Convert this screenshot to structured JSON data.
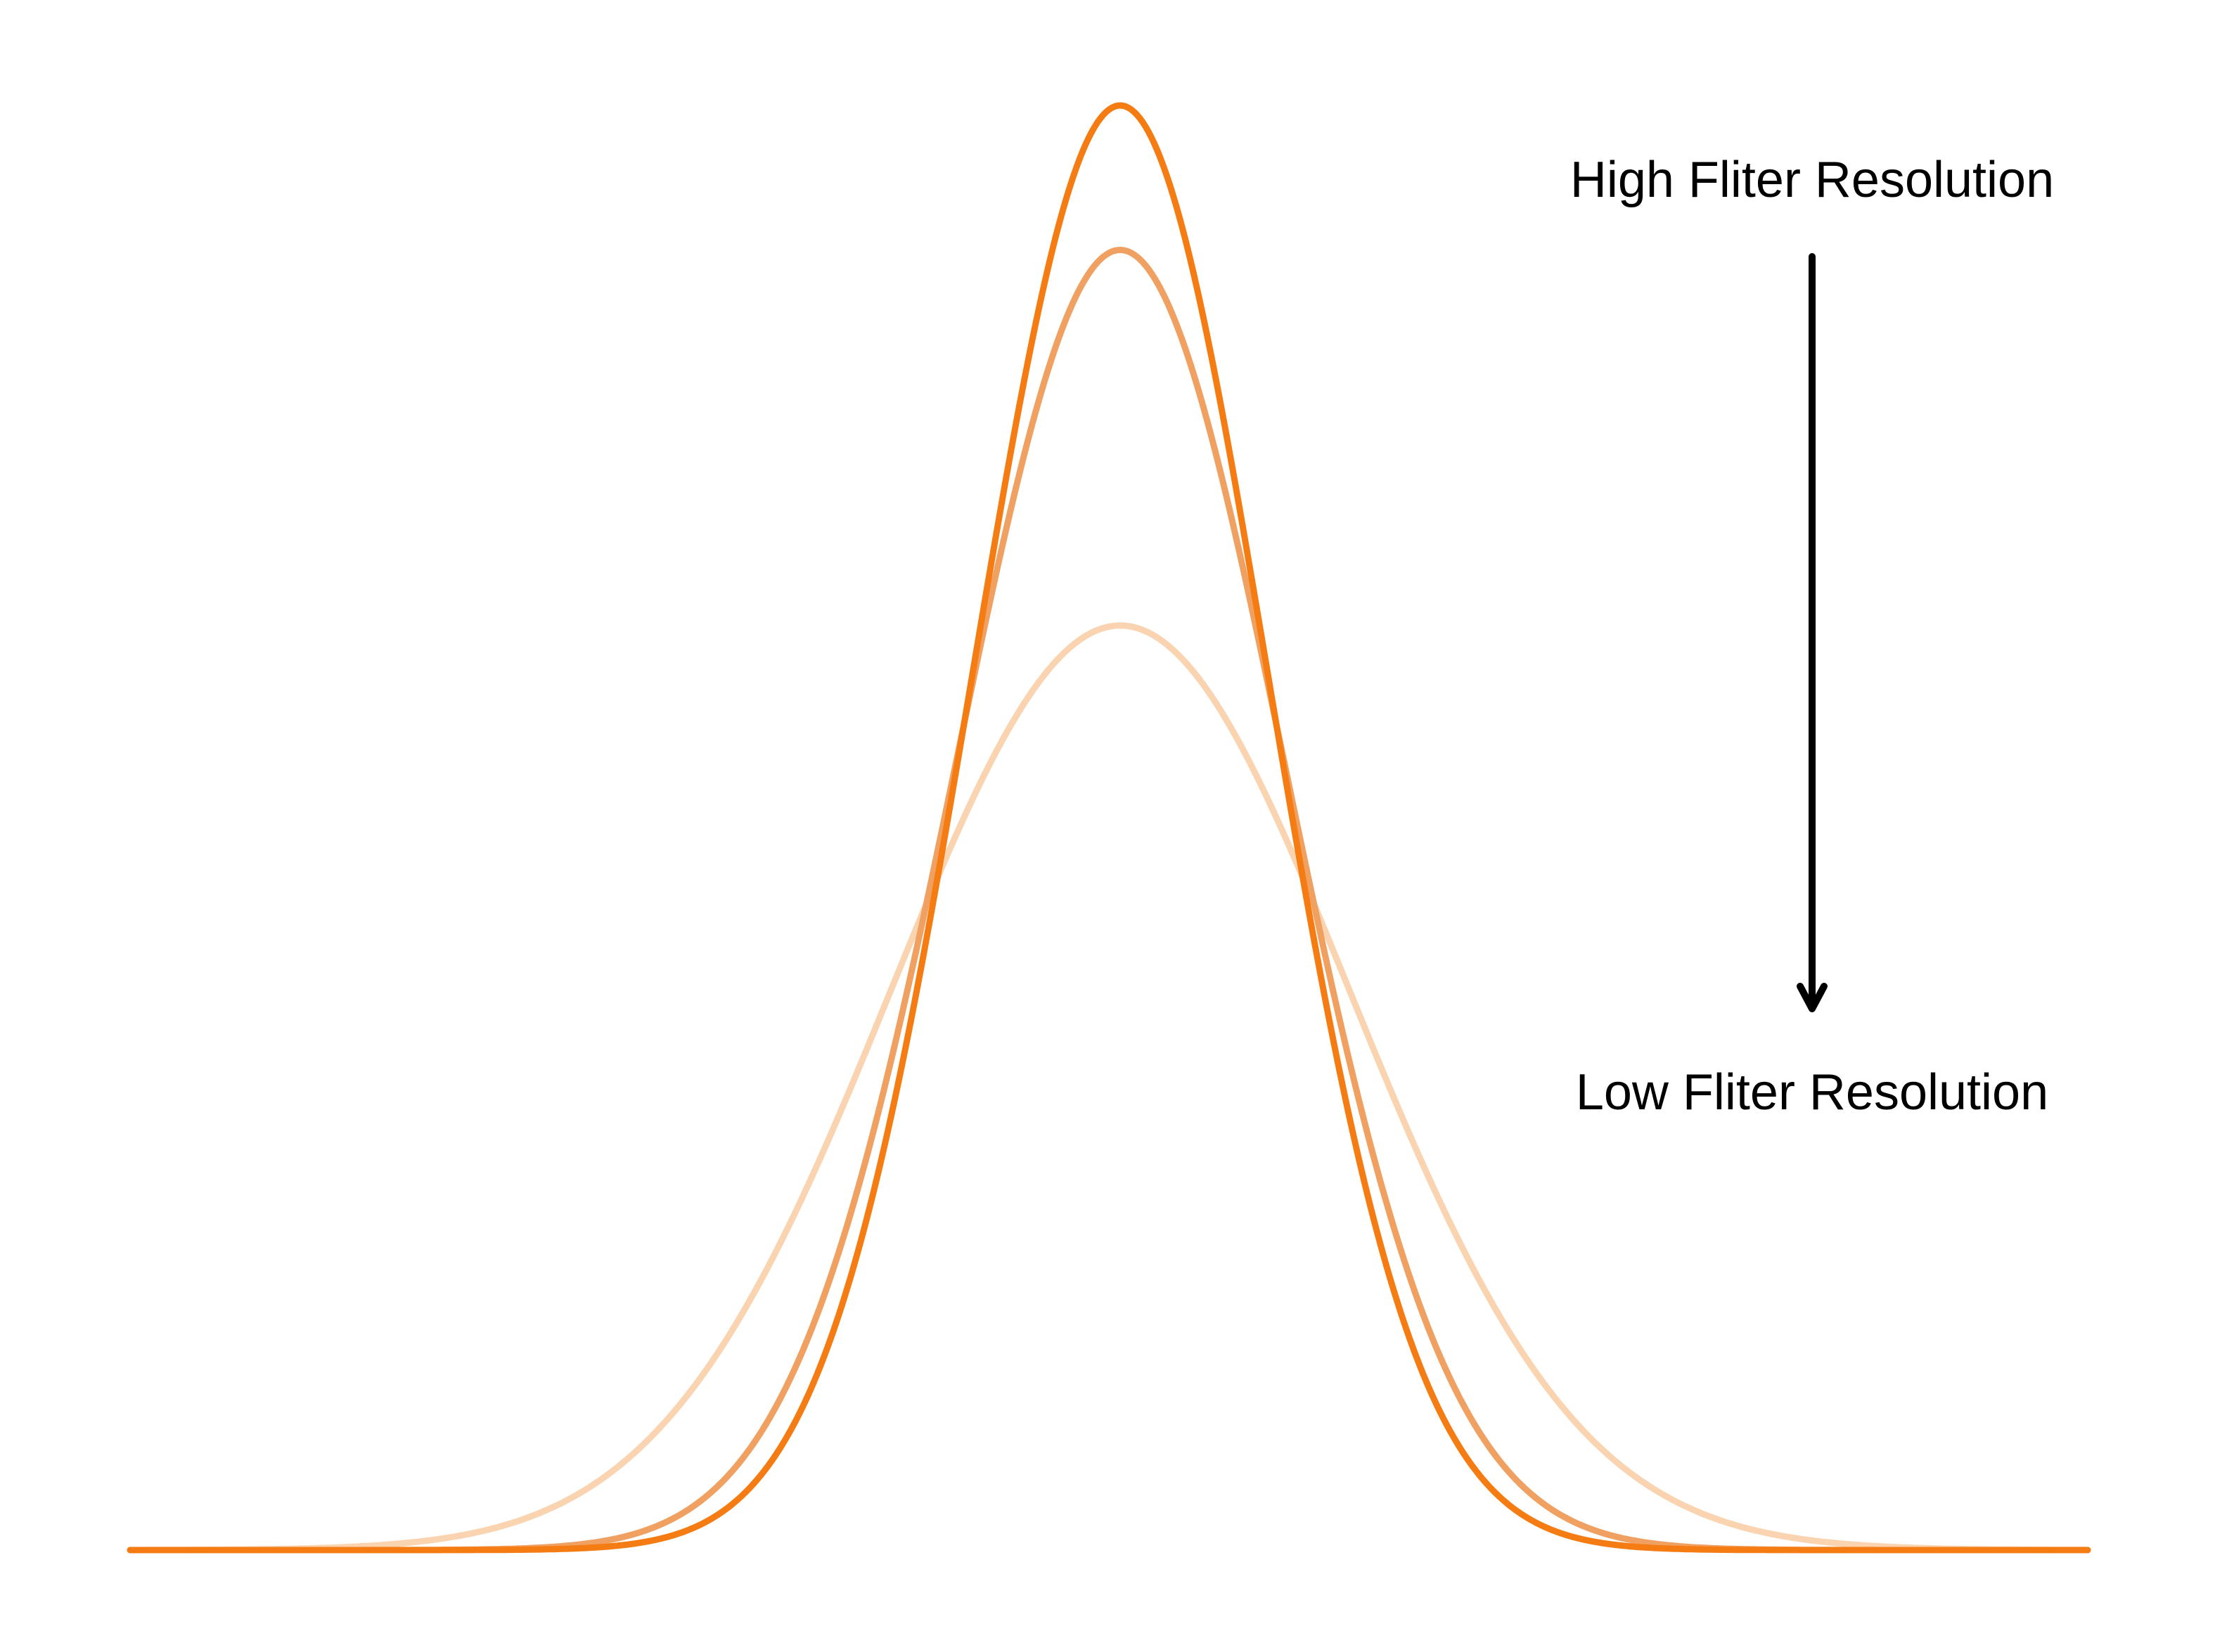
{
  "diagram": {
    "top_label": "High Fliter Resolution",
    "bottom_label": "Low Fliter Resolution",
    "arrow_color": "#000000",
    "curves": [
      {
        "id": "curve-high",
        "relative_peak": 1.0,
        "relative_width": 1.0,
        "color": "#F57C13"
      },
      {
        "id": "curve-medium",
        "relative_peak": 0.9,
        "relative_width": 1.11,
        "color": "#F0A060"
      },
      {
        "id": "curve-low",
        "relative_peak": 0.64,
        "relative_width": 1.55,
        "color": "#FAD4B0"
      }
    ]
  }
}
